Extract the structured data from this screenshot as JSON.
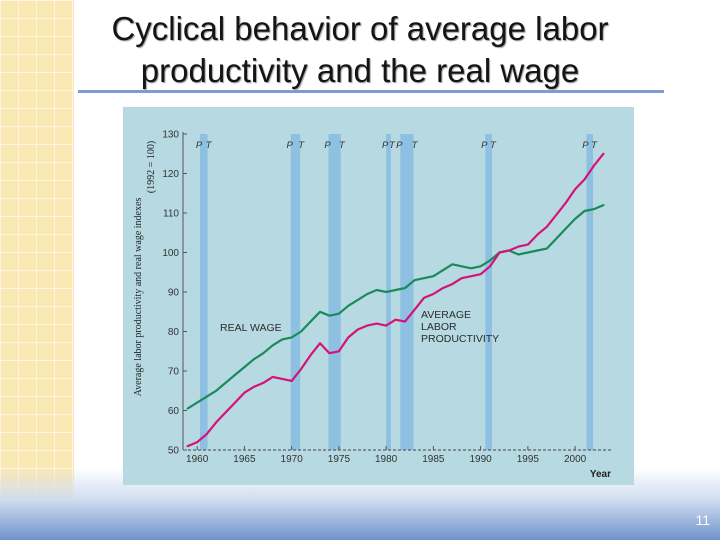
{
  "slide": {
    "title_lines": [
      "Cyclical behavior of average labor",
      "productivity and the real wage"
    ],
    "page_number": "11"
  },
  "colors": {
    "real_wage": "#1a8a5a",
    "productivity": "#d4127a",
    "recession_band": "#8ec0e2",
    "plot_background": "#b7d9e2",
    "title_rule": "#7e9ccf"
  },
  "chart_data": {
    "type": "line",
    "ylabel_lines": [
      "Average labor productivity and real wage indexes",
      "(1992 = 100)"
    ],
    "xlabel": "Year",
    "xlim": [
      1958.5,
      2003.8
    ],
    "ylim": [
      50,
      130
    ],
    "yticks": [
      50,
      60,
      70,
      80,
      90,
      100,
      110,
      120,
      130
    ],
    "xticks": [
      1960,
      1965,
      1970,
      1975,
      1980,
      1985,
      1990,
      1995,
      2000
    ],
    "recessions": [
      {
        "start": 1960.3,
        "end": 1961.1,
        "peak_label": "P",
        "trough_label": "T"
      },
      {
        "start": 1969.9,
        "end": 1970.9,
        "peak_label": "P",
        "trough_label": "T"
      },
      {
        "start": 1973.9,
        "end": 1975.2,
        "peak_label": "P",
        "trough_label": "T"
      },
      {
        "start": 1980.0,
        "end": 1980.5,
        "peak_label": "P",
        "trough_label": "T"
      },
      {
        "start": 1981.5,
        "end": 1982.9,
        "peak_label": "P",
        "trough_label": "T"
      },
      {
        "start": 1990.5,
        "end": 1991.2,
        "peak_label": "P",
        "trough_label": "T"
      },
      {
        "start": 2001.2,
        "end": 2001.9,
        "peak_label": "P",
        "trough_label": "T"
      }
    ],
    "series": [
      {
        "name": "REAL WAGE",
        "x": [
          1959,
          1960,
          1961,
          1962,
          1963,
          1964,
          1965,
          1966,
          1967,
          1968,
          1969,
          1970,
          1971,
          1972,
          1973,
          1974,
          1975,
          1976,
          1977,
          1978,
          1979,
          1980,
          1981,
          1982,
          1983,
          1984,
          1985,
          1986,
          1987,
          1988,
          1989,
          1990,
          1991,
          1992,
          1993,
          1994,
          1995,
          1996,
          1997,
          1998,
          1999,
          2000,
          2001,
          2002,
          2003
        ],
        "y": [
          60.5,
          62,
          63.5,
          65,
          67,
          69,
          71,
          73,
          74.5,
          76.5,
          78,
          78.5,
          80,
          82.5,
          85,
          84,
          84.5,
          86.5,
          88,
          89.5,
          90.5,
          90,
          90.5,
          91,
          93,
          93.5,
          94,
          95.5,
          97,
          96.5,
          96,
          96.5,
          98,
          100,
          100.5,
          99.5,
          100,
          100.5,
          101,
          103.5,
          106,
          108.5,
          110.5,
          111,
          112
        ]
      },
      {
        "name": "AVERAGE LABOR PRODUCTIVITY",
        "x": [
          1959,
          1960,
          1961,
          1962,
          1963,
          1964,
          1965,
          1966,
          1967,
          1968,
          1969,
          1970,
          1971,
          1972,
          1973,
          1974,
          1975,
          1976,
          1977,
          1978,
          1979,
          1980,
          1981,
          1982,
          1983,
          1984,
          1985,
          1986,
          1987,
          1988,
          1989,
          1990,
          1991,
          1992,
          1993,
          1994,
          1995,
          1996,
          1997,
          1998,
          1999,
          2000,
          2001,
          2002,
          2003
        ],
        "y": [
          51,
          52,
          54,
          57,
          59.5,
          62,
          64.5,
          66,
          67,
          68.5,
          68,
          67.5,
          70.5,
          74,
          77,
          74.5,
          75,
          78.5,
          80.5,
          81.5,
          82,
          81.5,
          83,
          82.5,
          85.5,
          88.5,
          89.5,
          91,
          92,
          93.5,
          94,
          94.5,
          96.5,
          100,
          100.5,
          101.5,
          102,
          104.5,
          106.5,
          109.5,
          112.5,
          116,
          118.5,
          122,
          125
        ]
      }
    ],
    "annotations": {
      "real_wage_label": "REAL  WAGE",
      "productivity_label_lines": [
        "AVERAGE",
        "LABOR",
        "PRODUCTIVITY"
      ]
    }
  }
}
